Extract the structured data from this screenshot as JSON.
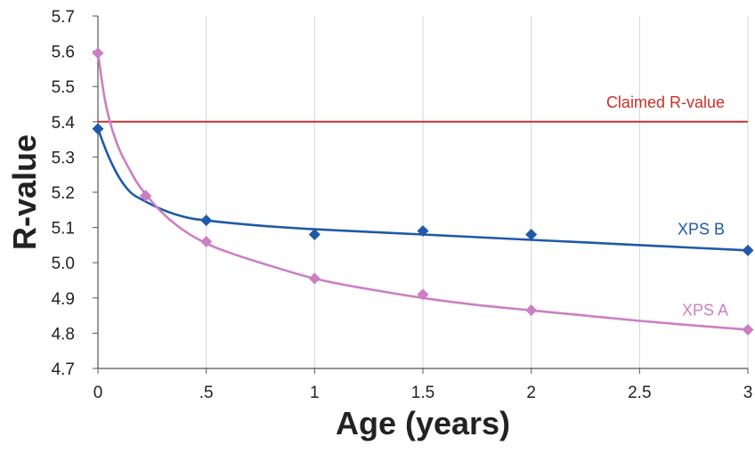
{
  "chart_data": {
    "type": "scatter",
    "title": "",
    "xlabel": "Age (years)",
    "ylabel": "R-value",
    "xlim": [
      0,
      3
    ],
    "ylim": [
      4.7,
      5.7
    ],
    "grid": "vertical",
    "x_ticks": [
      0,
      0.5,
      1,
      1.5,
      2,
      2.5,
      3
    ],
    "x_tick_labels": [
      "0",
      ".5",
      "1",
      "1.5",
      "2",
      "2.5",
      "3"
    ],
    "y_ticks": [
      4.7,
      4.8,
      4.9,
      5.0,
      5.1,
      5.2,
      5.3,
      5.4,
      5.5,
      5.6,
      5.7
    ],
    "y_tick_labels": [
      "4.7",
      "4.8",
      "4.9",
      "5.0",
      "5.1",
      "5.2",
      "5.3",
      "5.4",
      "5.5",
      "5.6",
      "5.7"
    ],
    "reference_line": {
      "name": "Claimed R-value",
      "y": 5.4,
      "color": "#c8312b"
    },
    "series": [
      {
        "name": "XPS B",
        "color": "#1e5aa8",
        "marker": "diamond",
        "points": [
          [
            0,
            5.38
          ],
          [
            0.22,
            5.19
          ],
          [
            0.5,
            5.12
          ],
          [
            1,
            5.08
          ],
          [
            1.5,
            5.09
          ],
          [
            2,
            5.08
          ],
          [
            3,
            5.035
          ]
        ],
        "trend": [
          [
            0,
            5.38
          ],
          [
            0.05,
            5.3
          ],
          [
            0.1,
            5.24
          ],
          [
            0.15,
            5.2
          ],
          [
            0.2,
            5.18
          ],
          [
            0.3,
            5.15
          ],
          [
            0.4,
            5.13
          ],
          [
            0.5,
            5.12
          ],
          [
            0.75,
            5.105
          ],
          [
            1,
            5.095
          ],
          [
            1.5,
            5.08
          ],
          [
            2,
            5.065
          ],
          [
            2.5,
            5.05
          ],
          [
            3,
            5.035
          ]
        ]
      },
      {
        "name": "XPS A",
        "color": "#cc7fc4",
        "marker": "diamond",
        "points": [
          [
            0,
            5.595
          ],
          [
            0.22,
            5.19
          ],
          [
            0.5,
            5.06
          ],
          [
            1,
            4.955
          ],
          [
            1.5,
            4.91
          ],
          [
            2,
            4.865
          ],
          [
            3,
            4.81
          ]
        ],
        "trend": [
          [
            0,
            5.595
          ],
          [
            0.03,
            5.47
          ],
          [
            0.06,
            5.39
          ],
          [
            0.1,
            5.32
          ],
          [
            0.15,
            5.26
          ],
          [
            0.2,
            5.21
          ],
          [
            0.3,
            5.14
          ],
          [
            0.4,
            5.09
          ],
          [
            0.5,
            5.055
          ],
          [
            0.6,
            5.03
          ],
          [
            0.75,
            5.0
          ],
          [
            1,
            4.955
          ],
          [
            1.25,
            4.925
          ],
          [
            1.5,
            4.9
          ],
          [
            1.75,
            4.88
          ],
          [
            2,
            4.865
          ],
          [
            2.25,
            4.85
          ],
          [
            2.5,
            4.835
          ],
          [
            2.75,
            4.822
          ],
          [
            3,
            4.81
          ]
        ]
      }
    ]
  }
}
